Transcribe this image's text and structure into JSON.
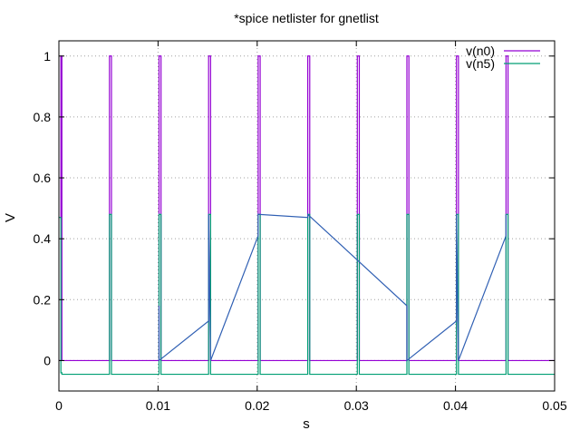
{
  "chart_data": {
    "type": "line",
    "title": "*spice netlister for gnetlist",
    "xlabel": "s",
    "ylabel": "V",
    "xlim": [
      0,
      0.05
    ],
    "ylim": [
      -0.1,
      1.05
    ],
    "x_ticks": [
      0,
      0.01,
      0.02,
      0.03,
      0.04,
      0.05
    ],
    "x_tick_labels": [
      "0",
      "0.01",
      "0.02",
      "0.03",
      "0.04",
      "0.05"
    ],
    "y_ticks": [
      0,
      0.2,
      0.4,
      0.6,
      0.8,
      1
    ],
    "y_tick_labels": [
      "0",
      "0.2",
      "0.4",
      "0.6",
      "0.8",
      "1"
    ],
    "grid": true,
    "legend_position": "top-right",
    "series": [
      {
        "name": "v(n0)",
        "color": "#9400d3",
        "x": [
          0,
          0.0003,
          0.0003,
          0.0002,
          0.0002,
          0.0003,
          0.0003,
          0.0051,
          0.0051,
          0.0053,
          0.0053,
          0.0101,
          0.0101,
          0.0103,
          0.0103,
          0.0151,
          0.0151,
          0.0153,
          0.0153,
          0.0201,
          0.0201,
          0.0203,
          0.0203,
          0.0251,
          0.0251,
          0.0253,
          0.0253,
          0.0301,
          0.0301,
          0.0303,
          0.0303,
          0.0351,
          0.0351,
          0.0353,
          0.0353,
          0.0401,
          0.0401,
          0.0403,
          0.0403,
          0.0451,
          0.0451,
          0.0453,
          0.0453,
          0.05
        ],
        "values": [
          0,
          0,
          0.47,
          0.47,
          1,
          1,
          0,
          0,
          1,
          1,
          0,
          0,
          1,
          1,
          0,
          0,
          1,
          1,
          0,
          0,
          1,
          1,
          0,
          0,
          1,
          1,
          0,
          0,
          1,
          1,
          0,
          0,
          1,
          1,
          0,
          0,
          1,
          1,
          0,
          0,
          1,
          1,
          0,
          0
        ]
      },
      {
        "name": "v(n5)",
        "color": "#009e73",
        "x": [
          0,
          0.0002,
          0.0002,
          0.0003,
          0.0003,
          0.0051,
          0.0051,
          0.0053,
          0.0053,
          0.0101,
          0.0101,
          0.0103,
          0.0103,
          0.0151,
          0.0151,
          0.0153,
          0.0153,
          0.0201,
          0.0201,
          0.0203,
          0.0203,
          0.0251,
          0.0251,
          0.0253,
          0.0253,
          0.0301,
          0.0301,
          0.0303,
          0.0303,
          0.0351,
          0.0351,
          0.0353,
          0.0353,
          0.0401,
          0.0401,
          0.0403,
          0.0403,
          0.0451,
          0.0451,
          0.0453,
          0.0453,
          0.05
        ],
        "values": [
          0.47,
          0.47,
          -0.04,
          -0.04,
          -0.045,
          -0.045,
          0.48,
          0.48,
          -0.045,
          -0.045,
          0.48,
          0.48,
          -0.045,
          -0.045,
          0.48,
          0.48,
          -0.045,
          -0.045,
          0.48,
          0.48,
          -0.045,
          -0.045,
          0.48,
          0.48,
          -0.045,
          -0.045,
          0.48,
          0.48,
          -0.045,
          -0.045,
          0.48,
          0.48,
          -0.045,
          -0.045,
          0.48,
          0.48,
          -0.045,
          -0.045,
          0.48,
          0.48,
          -0.045,
          -0.045
        ]
      },
      {
        "name": "",
        "color": "#2f5fb3",
        "x": [
          0.0101,
          0.0101,
          0.0151,
          0.0151,
          0.0153,
          0.0153,
          0.0201,
          0.0201,
          0.0251,
          0.0251,
          0.0351,
          0.0351,
          0.0401,
          0.0401,
          0.0403,
          0.0403,
          0.0451,
          0.0451
        ],
        "values": [
          0.18,
          0.0,
          0.13,
          0.48,
          0.01,
          0.0,
          0.41,
          0.48,
          0.47,
          0.48,
          0.18,
          0.0,
          0.13,
          0.48,
          0.01,
          0.0,
          0.41,
          0.48
        ]
      }
    ]
  }
}
